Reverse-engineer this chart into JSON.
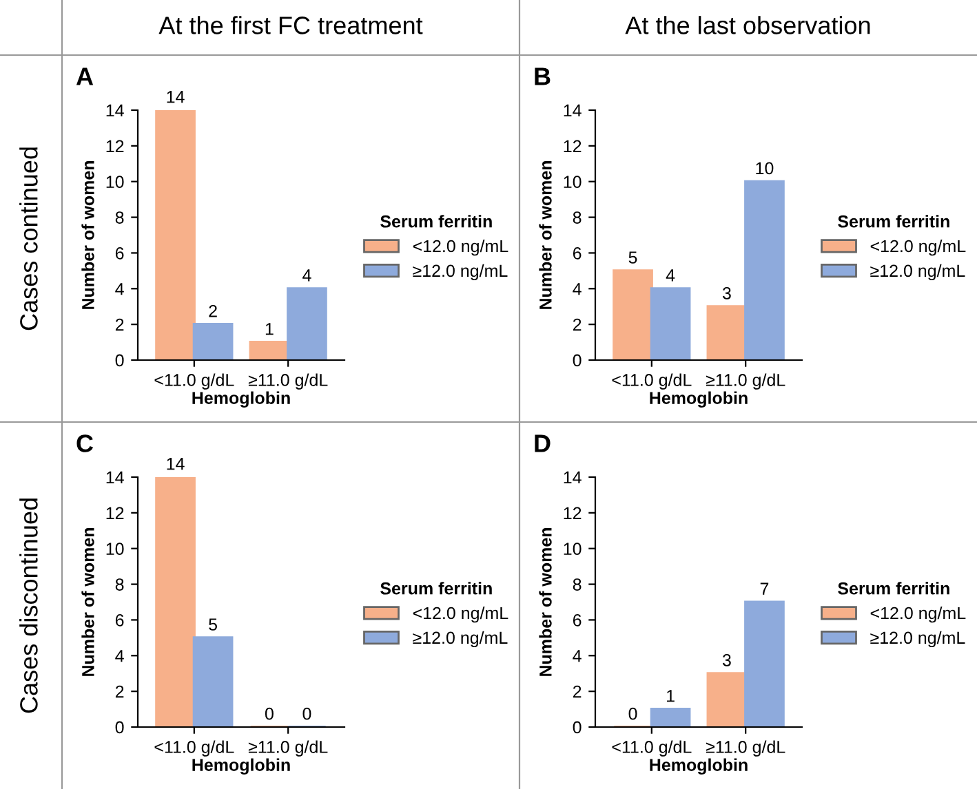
{
  "chart_data": [
    {
      "type": "bar",
      "title": "A",
      "subtitle": "At the first FC treatment",
      "annotations": [
        "Cases continued"
      ],
      "categories": [
        "<11.0 g/dL",
        "≥11.0 g/dL"
      ],
      "xlabel": "Hemoglobin",
      "ylabel": "Number of women",
      "legend_title": "Serum ferritin",
      "legend": "right",
      "ylim": [
        0,
        14
      ],
      "yticks": [
        0,
        2,
        4,
        6,
        8,
        10,
        12,
        14
      ],
      "data_labels": true,
      "series": [
        {
          "name": "<12.0 ng/mL",
          "color": "#f7b08a",
          "values": [
            14,
            1
          ]
        },
        {
          "name": "≥12.0 ng/mL",
          "color": "#8eaadc",
          "values": [
            2,
            4
          ]
        }
      ]
    },
    {
      "type": "bar",
      "title": "B",
      "subtitle": "At the last observation",
      "categories": [
        "<11.0 g/dL",
        "≥11.0 g/dL"
      ],
      "xlabel": "Hemoglobin",
      "ylabel": "Number of women",
      "legend_title": "Serum ferritin",
      "legend": "right",
      "ylim": [
        0,
        14
      ],
      "yticks": [
        0,
        2,
        4,
        6,
        8,
        10,
        12,
        14
      ],
      "data_labels": true,
      "series": [
        {
          "name": "<12.0 ng/mL",
          "color": "#f7b08a",
          "values": [
            5,
            3
          ]
        },
        {
          "name": "≥12.0 ng/mL",
          "color": "#8eaadc",
          "values": [
            4,
            10
          ]
        }
      ]
    },
    {
      "type": "bar",
      "title": "C",
      "annotations": [
        "Cases discontinued"
      ],
      "categories": [
        "<11.0 g/dL",
        "≥11.0 g/dL"
      ],
      "xlabel": "Hemoglobin",
      "ylabel": "Number of women",
      "legend_title": "Serum ferritin",
      "legend": "right",
      "ylim": [
        0,
        14
      ],
      "yticks": [
        0,
        2,
        4,
        6,
        8,
        10,
        12,
        14
      ],
      "data_labels": true,
      "series": [
        {
          "name": "<12.0 ng/mL",
          "color": "#f7b08a",
          "values": [
            14,
            0
          ]
        },
        {
          "name": "≥12.0 ng/mL",
          "color": "#8eaadc",
          "values": [
            5,
            0
          ]
        }
      ]
    },
    {
      "type": "bar",
      "title": "D",
      "categories": [
        "<11.0 g/dL",
        "≥11.0 g/dL"
      ],
      "xlabel": "Hemoglobin",
      "ylabel": "Number of women",
      "legend_title": "Serum ferritin",
      "legend": "right",
      "ylim": [
        0,
        14
      ],
      "yticks": [
        0,
        2,
        4,
        6,
        8,
        10,
        12,
        14
      ],
      "data_labels": true,
      "series": [
        {
          "name": "<12.0 ng/mL",
          "color": "#f7b08a",
          "values": [
            0,
            3
          ]
        },
        {
          "name": "≥12.0 ng/mL",
          "color": "#8eaadc",
          "values": [
            1,
            7
          ]
        }
      ]
    }
  ]
}
